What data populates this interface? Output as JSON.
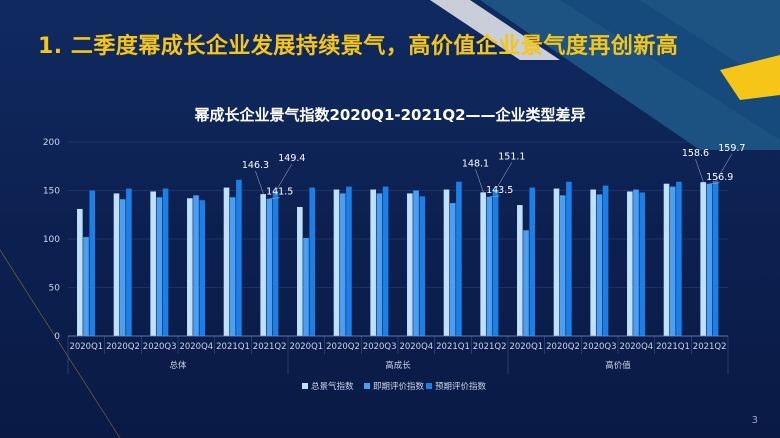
{
  "slide": {
    "title": "1. 二季度幂成长企业发展持续景气，高价值企业景气度再创新高",
    "page_number": "3",
    "colors": {
      "background": "#0d2152",
      "title": "#f5c518",
      "stripe_gray": "#c9ced8",
      "stripe_teal": "#1e5a8a",
      "accent_yellow": "#f5c518"
    }
  },
  "chart_data": {
    "type": "bar",
    "title": "幂成长企业景气指数2020Q1-2021Q2——企业类型差异",
    "groups": [
      "总体",
      "高成长",
      "高价值"
    ],
    "categories": [
      "2020Q1",
      "2020Q2",
      "2020Q3",
      "2020Q4",
      "2021Q1",
      "2021Q2"
    ],
    "ylim": [
      0,
      200
    ],
    "yticks": [
      0,
      50,
      100,
      150,
      200
    ],
    "legend_position": "bottom",
    "series": [
      {
        "name": "总景气指数",
        "color": "#bfe0ff",
        "values": [
          [
            131,
            147,
            149,
            142,
            153,
            146.3
          ],
          [
            133,
            151,
            151,
            147,
            151,
            148.1
          ],
          [
            135,
            152,
            151,
            149,
            157,
            158.6
          ]
        ]
      },
      {
        "name": "即期评价指数",
        "color": "#4a9ff2",
        "values": [
          [
            102,
            141,
            143,
            145,
            143,
            141.5
          ],
          [
            101,
            147,
            147,
            150,
            137,
            143.5
          ],
          [
            109,
            145,
            146,
            151,
            154,
            156.9
          ]
        ]
      },
      {
        "name": "预期评价指数",
        "color": "#1a7fe6",
        "values": [
          [
            150,
            152,
            152,
            140,
            161,
            149.4
          ],
          [
            153,
            154,
            154,
            144,
            159,
            151.1
          ],
          [
            153,
            159,
            155,
            148,
            159,
            159.7
          ]
        ]
      }
    ],
    "data_labels": [
      {
        "text": "146.3",
        "group": 0,
        "cat": 5,
        "series": 0
      },
      {
        "text": "141.5",
        "group": 0,
        "cat": 5,
        "series": 1
      },
      {
        "text": "149.4",
        "group": 0,
        "cat": 5,
        "series": 2
      },
      {
        "text": "148.1",
        "group": 1,
        "cat": 5,
        "series": 0
      },
      {
        "text": "143.5",
        "group": 1,
        "cat": 5,
        "series": 1
      },
      {
        "text": "151.1",
        "group": 1,
        "cat": 5,
        "series": 2
      },
      {
        "text": "158.6",
        "group": 2,
        "cat": 5,
        "series": 0
      },
      {
        "text": "156.9",
        "group": 2,
        "cat": 5,
        "series": 1
      },
      {
        "text": "159.7",
        "group": 2,
        "cat": 5,
        "series": 2
      }
    ]
  }
}
